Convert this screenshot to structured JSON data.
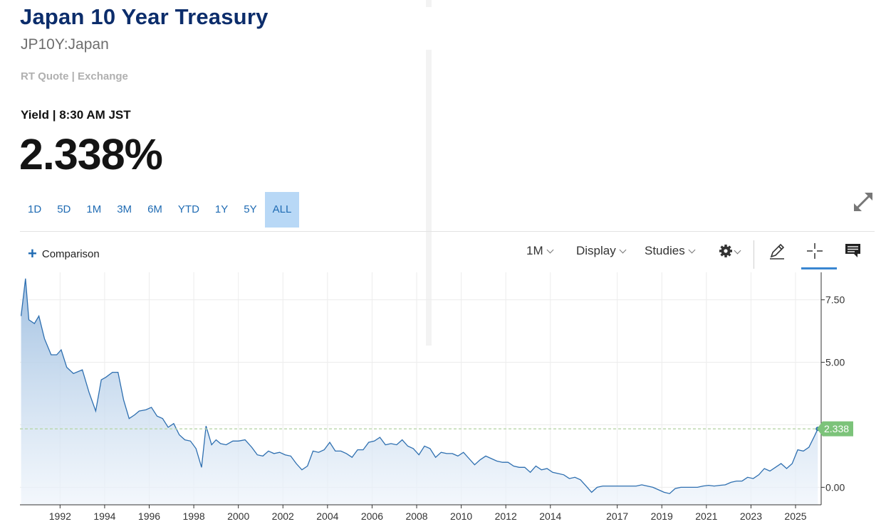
{
  "header": {
    "title": "Japan 10 Year Treasury",
    "symbol": "JP10Y:Japan",
    "quote_source": "RT Quote | Exchange",
    "yield_label": "Yield | 8:30 AM JST",
    "price": "2.338%"
  },
  "ranges": {
    "items": [
      "1D",
      "5D",
      "1M",
      "3M",
      "6M",
      "YTD",
      "1Y",
      "5Y",
      "ALL"
    ],
    "active": "ALL"
  },
  "toolbar": {
    "comparison_label": "Comparison",
    "interval_label": "1M",
    "display_label": "Display",
    "studies_label": "Studies",
    "icons": [
      "plus-icon",
      "gear-icon",
      "pencil-icon",
      "crosshair-icon",
      "comment-icon",
      "expand-icon"
    ]
  },
  "colors": {
    "title": "#0c2d6b",
    "accent": "#1f6bb3",
    "line": "#2e6fb0",
    "last_label": "#7cc37a",
    "active_range": "#b8d8f6"
  },
  "chart_data": {
    "type": "area",
    "title": "",
    "xlabel": "",
    "ylabel": "",
    "xlim": [
      1990.2,
      2026.15
    ],
    "ylim": [
      -0.7,
      8.6
    ],
    "y_ticks": [
      7.5,
      5.0,
      2.5,
      0.0
    ],
    "y_tick_labels": [
      "7.50",
      "5.00",
      "",
      "0.00"
    ],
    "x_ticks": [
      1992,
      1994,
      1996,
      1998,
      2000,
      2002,
      2004,
      2006,
      2008,
      2010,
      2012,
      2014,
      2017,
      2019,
      2021,
      2023,
      2025
    ],
    "x_tick_labels": [
      "1992",
      "1994",
      "1996",
      "1998",
      "2000",
      "2002",
      "2004",
      "2006",
      "2008",
      "2010",
      "2012",
      "2014",
      "2017",
      "2019",
      "2021",
      "2023",
      "2025"
    ],
    "last_value": 2.338,
    "last_label": "2.338",
    "series": [
      {
        "name": "JP10Y",
        "x": [
          1990.25,
          1990.45,
          1990.6,
          1990.85,
          1991.05,
          1991.3,
          1991.6,
          1991.85,
          1992.05,
          1992.3,
          1992.6,
          1993.0,
          1993.3,
          1993.6,
          1993.85,
          1994.05,
          1994.35,
          1994.6,
          1994.85,
          1995.1,
          1995.35,
          1995.55,
          1995.85,
          1996.1,
          1996.35,
          1996.6,
          1996.85,
          1997.1,
          1997.35,
          1997.6,
          1997.85,
          1998.1,
          1998.35,
          1998.55,
          1998.8,
          1999.0,
          1999.2,
          1999.45,
          1999.75,
          2000.0,
          2000.3,
          2000.6,
          2000.85,
          2001.1,
          2001.35,
          2001.6,
          2001.85,
          2002.1,
          2002.35,
          2002.6,
          2002.85,
          2003.1,
          2003.35,
          2003.6,
          2003.85,
          2004.1,
          2004.35,
          2004.6,
          2004.85,
          2005.1,
          2005.35,
          2005.6,
          2005.85,
          2006.1,
          2006.35,
          2006.6,
          2006.85,
          2007.1,
          2007.35,
          2007.6,
          2007.85,
          2008.1,
          2008.35,
          2008.6,
          2008.85,
          2009.1,
          2009.35,
          2009.6,
          2009.85,
          2010.1,
          2010.35,
          2010.6,
          2010.85,
          2011.1,
          2011.35,
          2011.6,
          2011.85,
          2012.1,
          2012.35,
          2012.6,
          2012.85,
          2013.1,
          2013.35,
          2013.6,
          2013.85,
          2014.1,
          2014.35,
          2014.6,
          2014.85,
          2015.1,
          2015.35,
          2015.6,
          2015.85,
          2016.1,
          2016.35,
          2016.6,
          2016.85,
          2017.1,
          2017.35,
          2017.6,
          2017.85,
          2018.1,
          2018.35,
          2018.6,
          2018.85,
          2019.1,
          2019.35,
          2019.6,
          2019.85,
          2020.1,
          2020.35,
          2020.6,
          2020.85,
          2021.1,
          2021.35,
          2021.6,
          2021.85,
          2022.1,
          2022.35,
          2022.6,
          2022.85,
          2023.1,
          2023.35,
          2023.6,
          2023.85,
          2024.1,
          2024.35,
          2024.6,
          2024.85,
          2025.1,
          2025.35,
          2025.6,
          2025.85,
          2026.0
        ],
        "values": [
          6.85,
          8.35,
          6.7,
          6.55,
          6.85,
          5.95,
          5.3,
          5.3,
          5.5,
          4.8,
          4.55,
          4.7,
          3.8,
          3.05,
          4.3,
          4.4,
          4.6,
          4.6,
          3.5,
          2.75,
          2.9,
          3.05,
          3.1,
          3.2,
          2.85,
          2.75,
          2.4,
          2.55,
          2.1,
          1.9,
          1.85,
          1.55,
          0.8,
          2.45,
          1.7,
          1.9,
          1.75,
          1.7,
          1.85,
          1.85,
          1.9,
          1.6,
          1.3,
          1.25,
          1.45,
          1.35,
          1.4,
          1.3,
          1.25,
          0.95,
          0.7,
          0.85,
          1.45,
          1.4,
          1.5,
          1.8,
          1.45,
          1.45,
          1.35,
          1.2,
          1.5,
          1.5,
          1.8,
          1.85,
          2.0,
          1.7,
          1.75,
          1.7,
          1.9,
          1.65,
          1.55,
          1.3,
          1.65,
          1.55,
          1.2,
          1.4,
          1.35,
          1.35,
          1.25,
          1.4,
          1.15,
          0.9,
          1.1,
          1.25,
          1.15,
          1.05,
          1.0,
          1.0,
          0.85,
          0.8,
          0.8,
          0.6,
          0.85,
          0.7,
          0.75,
          0.6,
          0.55,
          0.5,
          0.35,
          0.4,
          0.3,
          0.05,
          -0.2,
          0.0,
          0.05,
          0.05,
          0.05,
          0.05,
          0.05,
          0.05,
          0.05,
          0.1,
          0.05,
          0.0,
          -0.1,
          -0.2,
          -0.25,
          -0.05,
          0.0,
          0.0,
          0.0,
          0.0,
          0.05,
          0.08,
          0.05,
          0.08,
          0.1,
          0.2,
          0.25,
          0.25,
          0.4,
          0.35,
          0.5,
          0.75,
          0.65,
          0.8,
          0.95,
          0.75,
          0.95,
          1.5,
          1.45,
          1.6,
          2.05,
          2.338
        ]
      }
    ]
  }
}
